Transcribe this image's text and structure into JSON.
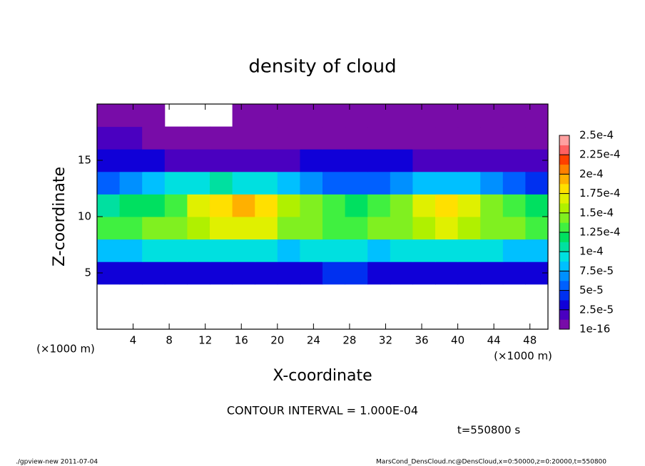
{
  "chart_data": {
    "type": "heatmap",
    "title": "density of cloud",
    "x_label": "X-coordinate",
    "y_label": "Z-coordinate",
    "x_unit": "(×1000 m)",
    "y_unit": "(×1000 m)",
    "contour_note": "CONTOUR INTERVAL = 1.000E-04",
    "time_label": "t=550800 s",
    "footer_left": "./gpview-new  2011-07-04",
    "footer_right": "MarsCond_DensCloud.nc@DensCloud,x=0:50000,z=0:20000,t=550800",
    "xlim": [
      0,
      50
    ],
    "ylim": [
      0,
      20
    ],
    "xticks": [
      4,
      8,
      12,
      16,
      20,
      24,
      28,
      32,
      36,
      40,
      44,
      48
    ],
    "yticks": [
      5,
      10,
      15
    ],
    "x_edges": [
      0,
      2.5,
      5,
      7.5,
      10,
      12.5,
      15,
      17.5,
      20,
      22.5,
      25,
      27.5,
      30,
      32.5,
      35,
      37.5,
      40,
      42.5,
      45,
      47.5,
      50
    ],
    "y_edges": [
      0,
      2,
      4,
      6,
      8,
      10,
      12,
      14,
      16,
      18,
      20
    ],
    "values": [
      [
        null,
        null,
        null,
        null,
        null,
        null,
        null,
        null,
        null,
        null,
        null,
        null,
        null,
        null,
        null,
        null,
        null,
        null,
        null,
        null
      ],
      [
        null,
        null,
        null,
        null,
        null,
        null,
        null,
        null,
        null,
        null,
        null,
        null,
        null,
        null,
        null,
        null,
        null,
        null,
        null,
        null
      ],
      [
        3e-05,
        3e-05,
        3.5e-05,
        3.5e-05,
        3.5e-05,
        3e-05,
        3e-05,
        3e-05,
        3e-05,
        3.5e-05,
        4e-05,
        4e-05,
        3.5e-05,
        3e-05,
        3e-05,
        3e-05,
        3e-05,
        3e-05,
        3e-05,
        3e-05
      ],
      [
        8e-05,
        8.5e-05,
        9e-05,
        9e-05,
        9.5e-05,
        9.5e-05,
        9e-05,
        9e-05,
        8.5e-05,
        9e-05,
        9e-05,
        9e-05,
        8.5e-05,
        9e-05,
        9e-05,
        9.5e-05,
        9.5e-05,
        9e-05,
        8.5e-05,
        8e-05
      ],
      [
        0.00013,
        0.000135,
        0.00014,
        0.000145,
        0.00016,
        0.000165,
        0.00017,
        0.000165,
        0.00015,
        0.00014,
        0.000135,
        0.000135,
        0.00014,
        0.00015,
        0.00016,
        0.000165,
        0.00016,
        0.00015,
        0.00014,
        0.00013
      ],
      [
        0.00011,
        0.000115,
        0.00012,
        0.00013,
        0.000175,
        0.000185,
        0.00019,
        0.00018,
        0.00016,
        0.00014,
        0.00013,
        0.000125,
        0.00013,
        0.00014,
        0.000165,
        0.00018,
        0.000175,
        0.00015,
        0.00013,
        0.00012
      ],
      [
        6e-05,
        7e-05,
        8e-05,
        9e-05,
        0.0001,
        0.000105,
        0.0001,
        9e-05,
        8e-05,
        7e-05,
        6e-05,
        6e-05,
        6e-05,
        7e-05,
        8e-05,
        8.5e-05,
        8e-05,
        7e-05,
        6e-05,
        5e-05
      ],
      [
        3e-05,
        3.5e-05,
        3e-05,
        2.5e-05,
        2e-05,
        2e-05,
        2e-05,
        2e-05,
        2.5e-05,
        3e-05,
        3.5e-05,
        3.5e-05,
        3e-05,
        3e-05,
        2.5e-05,
        2e-05,
        1.5e-05,
        1.5e-05,
        1.5e-05,
        1.5e-05
      ],
      [
        1.5e-05,
        1.5e-05,
        1.2e-05,
        8e-06,
        6e-06,
        5e-06,
        5e-06,
        6e-06,
        8e-06,
        1e-05,
        1.2e-05,
        1.2e-05,
        1e-05,
        8e-06,
        6e-06,
        6e-06,
        6e-06,
        5e-06,
        6e-06,
        8e-06
      ],
      [
        4e-06,
        4e-06,
        4e-06,
        null,
        null,
        null,
        4e-06,
        4e-06,
        4e-06,
        4e-06,
        3e-06,
        3e-06,
        3e-06,
        3e-06,
        3e-06,
        3e-06,
        3e-06,
        3e-06,
        3e-06,
        3e-06
      ]
    ],
    "clim": [
      1e-16,
      0.00025
    ],
    "cticks": [
      1e-16,
      {
        "value": 2.5e-05,
        "label": "2.5e-5"
      },
      {
        "value": 5e-05,
        "label": "5e-5"
      },
      {
        "value": 7.5e-05,
        "label": "7.5e-5"
      },
      {
        "value": 0.0001,
        "label": "1e-4"
      },
      {
        "value": 0.000125,
        "label": "1.25e-4"
      },
      {
        "value": 0.00015,
        "label": "1.5e-4"
      },
      {
        "value": 0.000175,
        "label": "1.75e-4"
      },
      {
        "value": 0.0002,
        "label": "2e-4"
      },
      {
        "value": 0.000225,
        "label": "2.25e-4"
      },
      {
        "value": 0.00025,
        "label": "2.5e-4"
      }
    ],
    "colors": [
      "#780ca8",
      "#4a00c0",
      "#1000d8",
      "#0030f0",
      "#0060ff",
      "#0090ff",
      "#00c0ff",
      "#00e0e0",
      "#00e0a0",
      "#00e060",
      "#40f040",
      "#80f020",
      "#b0f000",
      "#e0f000",
      "#ffe000",
      "#ffb000",
      "#ff8000",
      "#ff4000",
      "#ff6060",
      "#ffa0a0"
    ]
  }
}
